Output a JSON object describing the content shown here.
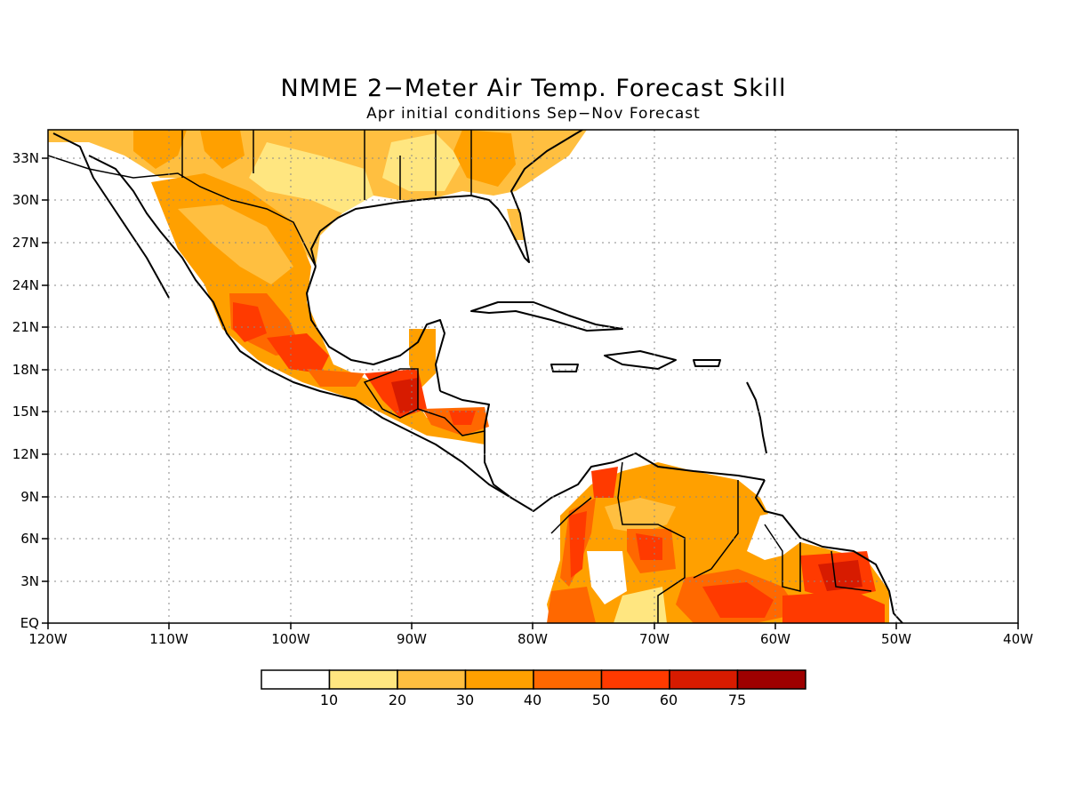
{
  "title": "NMME 2−Meter Air Temp. Forecast Skill",
  "subtitle": "Apr initial conditions  Sep−Nov Forecast",
  "map": {
    "lat_labels": [
      "EQ",
      "3N",
      "6N",
      "9N",
      "12N",
      "15N",
      "18N",
      "21N",
      "24N",
      "27N",
      "30N",
      "33N"
    ],
    "lon_labels": [
      "120W",
      "110W",
      "100W",
      "90W",
      "80W",
      "70W",
      "60W",
      "50W",
      "40W"
    ],
    "lon_range": [
      -120,
      -40
    ],
    "lat_range": [
      0,
      35
    ],
    "gridlines": "dotted"
  },
  "colorbar": {
    "labels": [
      "10",
      "20",
      "30",
      "40",
      "50",
      "60",
      "75"
    ],
    "colors": [
      "#ffffff",
      "#ffe680",
      "#ffbf40",
      "#ffa000",
      "#ff6800",
      "#ff3a00",
      "#d71b00",
      "#9e0000"
    ]
  }
}
